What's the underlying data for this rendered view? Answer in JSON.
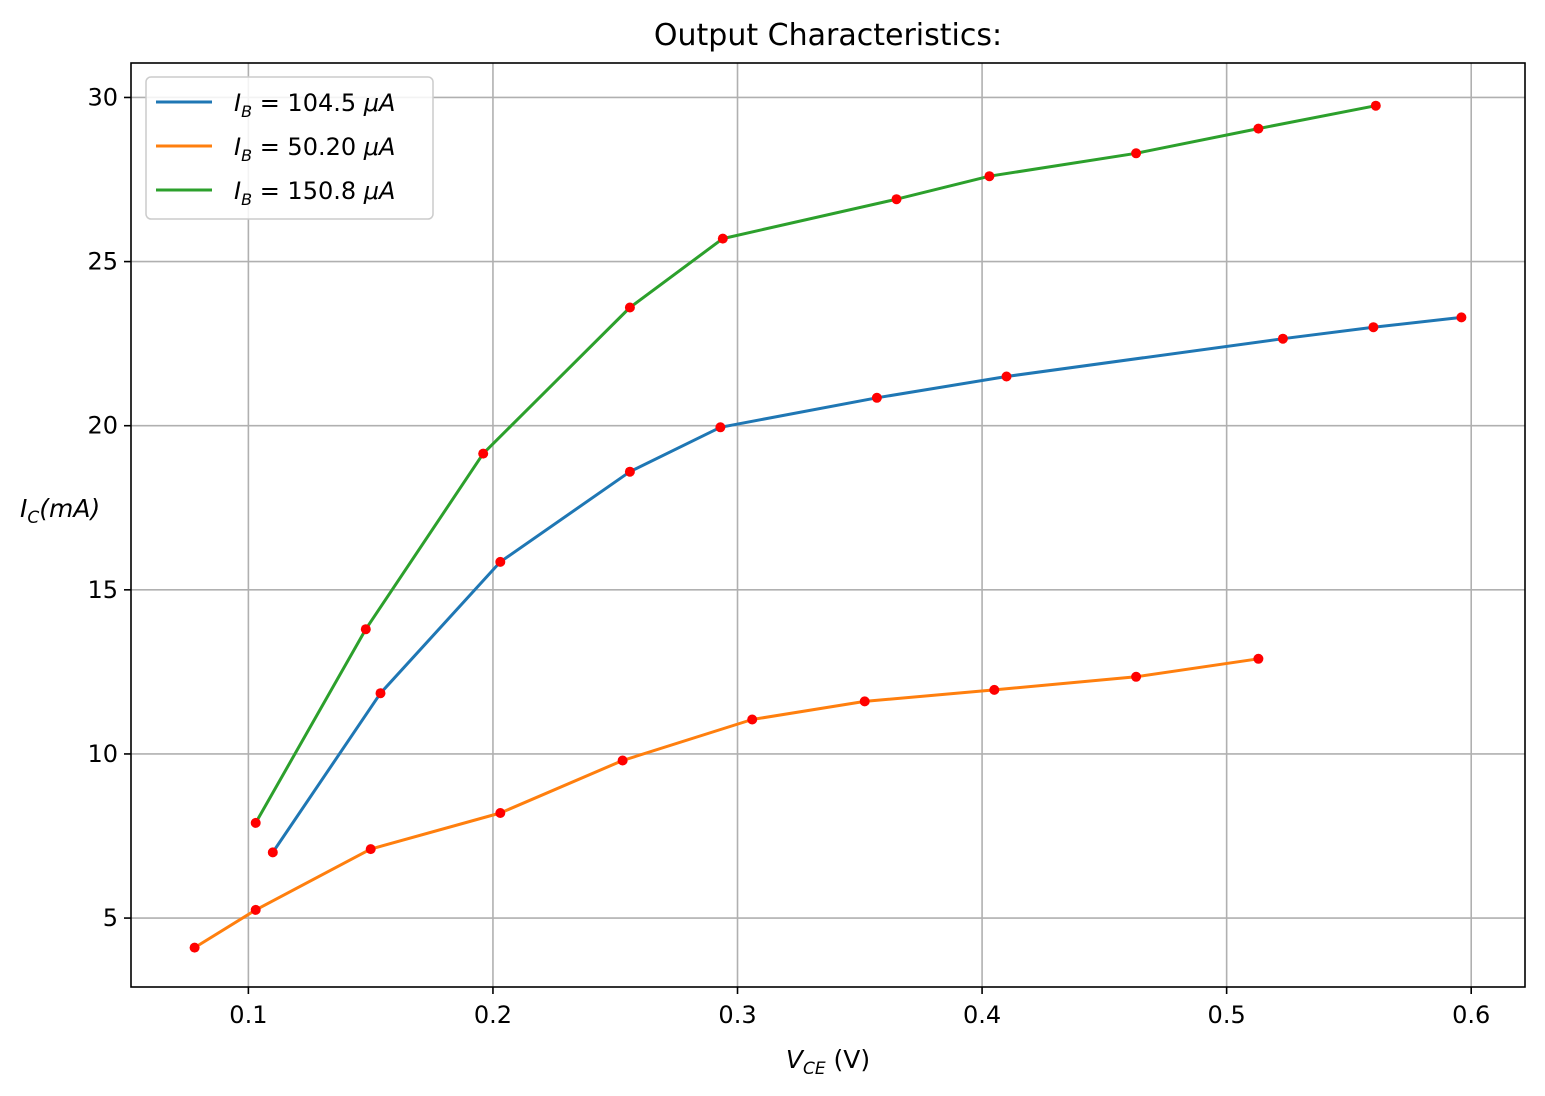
{
  "chart_data": {
    "type": "line",
    "title": "Output Characteristics:",
    "xlabel": {
      "main": "V",
      "sub": "CE",
      "unit": " (V)"
    },
    "ylabel": {
      "main": "I",
      "sub": "C",
      "unit": "(mA)"
    },
    "xlim": [
      0.052,
      0.622
    ],
    "ylim": [
      2.9,
      31.05
    ],
    "xticks": [
      0.1,
      0.2,
      0.3,
      0.4,
      0.5,
      0.6
    ],
    "xtick_labels": [
      "0.1",
      "0.2",
      "0.3",
      "0.4",
      "0.5",
      "0.6"
    ],
    "yticks": [
      5,
      10,
      15,
      20,
      25,
      30
    ],
    "ytick_labels": [
      "5",
      "10",
      "15",
      "20",
      "25",
      "30"
    ],
    "grid": true,
    "legend_position": "top-left",
    "marker_color": "#ff0000",
    "series": [
      {
        "label_main": "I",
        "label_sub": "B",
        "label_value": " = 104.5 ",
        "label_unit": "μA",
        "color": "#1f77b4",
        "x": [
          0.11,
          0.154,
          0.203,
          0.256,
          0.293,
          0.357,
          0.41,
          0.523,
          0.56,
          0.596
        ],
        "y": [
          7.0,
          11.85,
          15.85,
          18.6,
          19.95,
          20.85,
          21.5,
          22.65,
          23.0,
          23.3
        ]
      },
      {
        "label_main": "I",
        "label_sub": "B",
        "label_value": " = 50.20 ",
        "label_unit": "μA",
        "color": "#ff7f0e",
        "x": [
          0.078,
          0.103,
          0.15,
          0.203,
          0.253,
          0.306,
          0.352,
          0.405,
          0.463,
          0.513
        ],
        "y": [
          4.1,
          5.25,
          7.1,
          8.2,
          9.8,
          11.05,
          11.6,
          11.95,
          12.35,
          12.9
        ]
      },
      {
        "label_main": "I",
        "label_sub": "B",
        "label_value": " = 150.8 ",
        "label_unit": "μA",
        "color": "#2ca02c",
        "x": [
          0.103,
          0.148,
          0.196,
          0.256,
          0.294,
          0.365,
          0.403,
          0.463,
          0.513,
          0.561
        ],
        "y": [
          7.9,
          13.8,
          19.15,
          23.6,
          25.7,
          26.9,
          27.6,
          28.3,
          29.05,
          29.75
        ]
      }
    ]
  }
}
